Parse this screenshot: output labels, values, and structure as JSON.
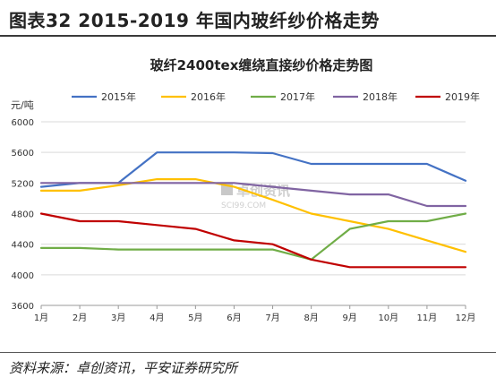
{
  "header": {
    "title": "图表32    2015-2019 年国内玻纤纱价格走势"
  },
  "footer": {
    "source": "资料来源：卓创资讯，平安证券研究所"
  },
  "watermark": {
    "name": "卓创资讯",
    "site": "SCI99.COM"
  },
  "chart_data": {
    "type": "line",
    "title": "玻纤2400tex缠绕直接纱价格走势图",
    "ylabel": "元/吨",
    "xlabel": "",
    "categories": [
      "1月",
      "2月",
      "3月",
      "4月",
      "5月",
      "6月",
      "7月",
      "8月",
      "9月",
      "10月",
      "11月",
      "12月"
    ],
    "ylim": [
      3600,
      6000
    ],
    "yticks": [
      3600,
      4000,
      4400,
      4800,
      5200,
      5600,
      6000
    ],
    "grid": "horizontal",
    "legend": "top",
    "series": [
      {
        "name": "2015年",
        "color": "#4472C4",
        "values": [
          5150,
          5200,
          5200,
          5600,
          5600,
          5600,
          5590,
          5450,
          5450,
          5450,
          5450,
          5230
        ]
      },
      {
        "name": "2016年",
        "color": "#FFC000",
        "values": [
          5100,
          5100,
          5170,
          5250,
          5250,
          5150,
          4980,
          4800,
          4700,
          4600,
          4450,
          4300
        ]
      },
      {
        "name": "2017年",
        "color": "#70AD47",
        "values": [
          4350,
          4350,
          4330,
          4330,
          4330,
          4330,
          4330,
          4200,
          4600,
          4700,
          4700,
          4800
        ]
      },
      {
        "name": "2018年",
        "color": "#8064A2",
        "values": [
          5200,
          5200,
          5200,
          5200,
          5200,
          5200,
          5150,
          5100,
          5050,
          5050,
          4900,
          4900
        ]
      },
      {
        "name": "2019年",
        "color": "#C00000",
        "values": [
          4800,
          4700,
          4700,
          4650,
          4600,
          4450,
          4400,
          4200,
          4100,
          4100,
          4100,
          4100
        ]
      }
    ]
  }
}
